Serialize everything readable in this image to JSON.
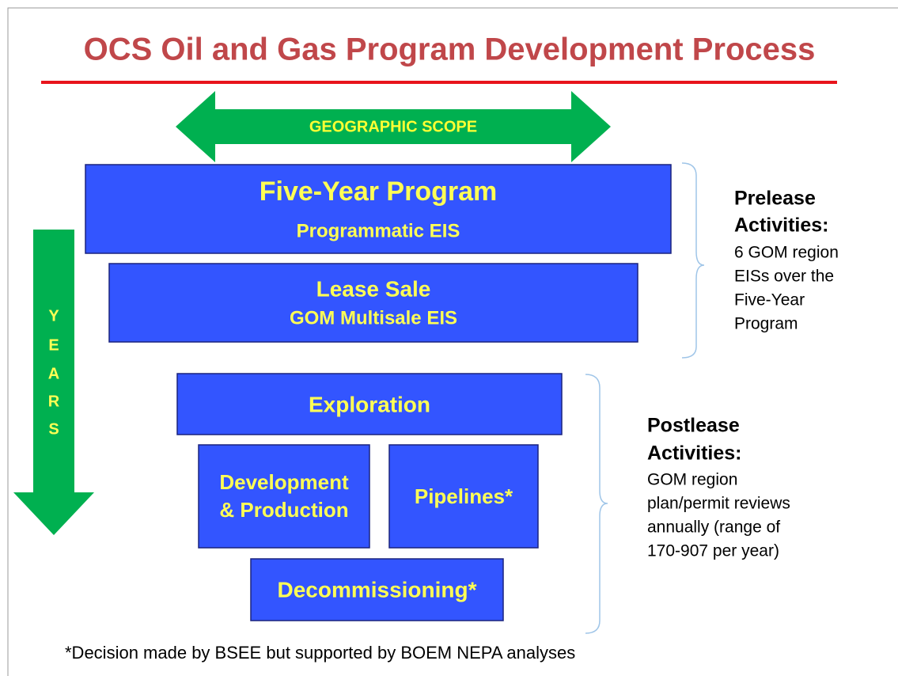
{
  "title": "OCS Oil and Gas Program Development Process",
  "scope_arrow": {
    "label": "GEOGRAPHIC SCOPE"
  },
  "years_arrow": {
    "letters": [
      "Y",
      "E",
      "A",
      "R",
      "S"
    ]
  },
  "boxes": [
    {
      "lines": [
        "Five-Year Program",
        "Programmatic  EIS"
      ]
    },
    {
      "lines": [
        "Lease Sale",
        "GOM Multisale EIS"
      ]
    },
    {
      "lines": [
        "Exploration"
      ]
    },
    {
      "lines": [
        "Development",
        "& Production"
      ]
    },
    {
      "lines": [
        "Pipelines*"
      ]
    },
    {
      "lines": [
        "Decommissioning*"
      ]
    }
  ],
  "notes": [
    {
      "heading": [
        "Prelease",
        "Activities:"
      ],
      "body": [
        "6 GOM region",
        "EISs over the",
        "Five-Year",
        "Program"
      ]
    },
    {
      "heading": [
        "Postlease",
        "Activities:"
      ],
      "body": [
        "GOM region",
        "plan/permit reviews",
        "annually (range of",
        "170-907 per year)"
      ]
    }
  ],
  "footnote": "*Decision made by BSEE but supported by BOEM NEPA analyses"
}
